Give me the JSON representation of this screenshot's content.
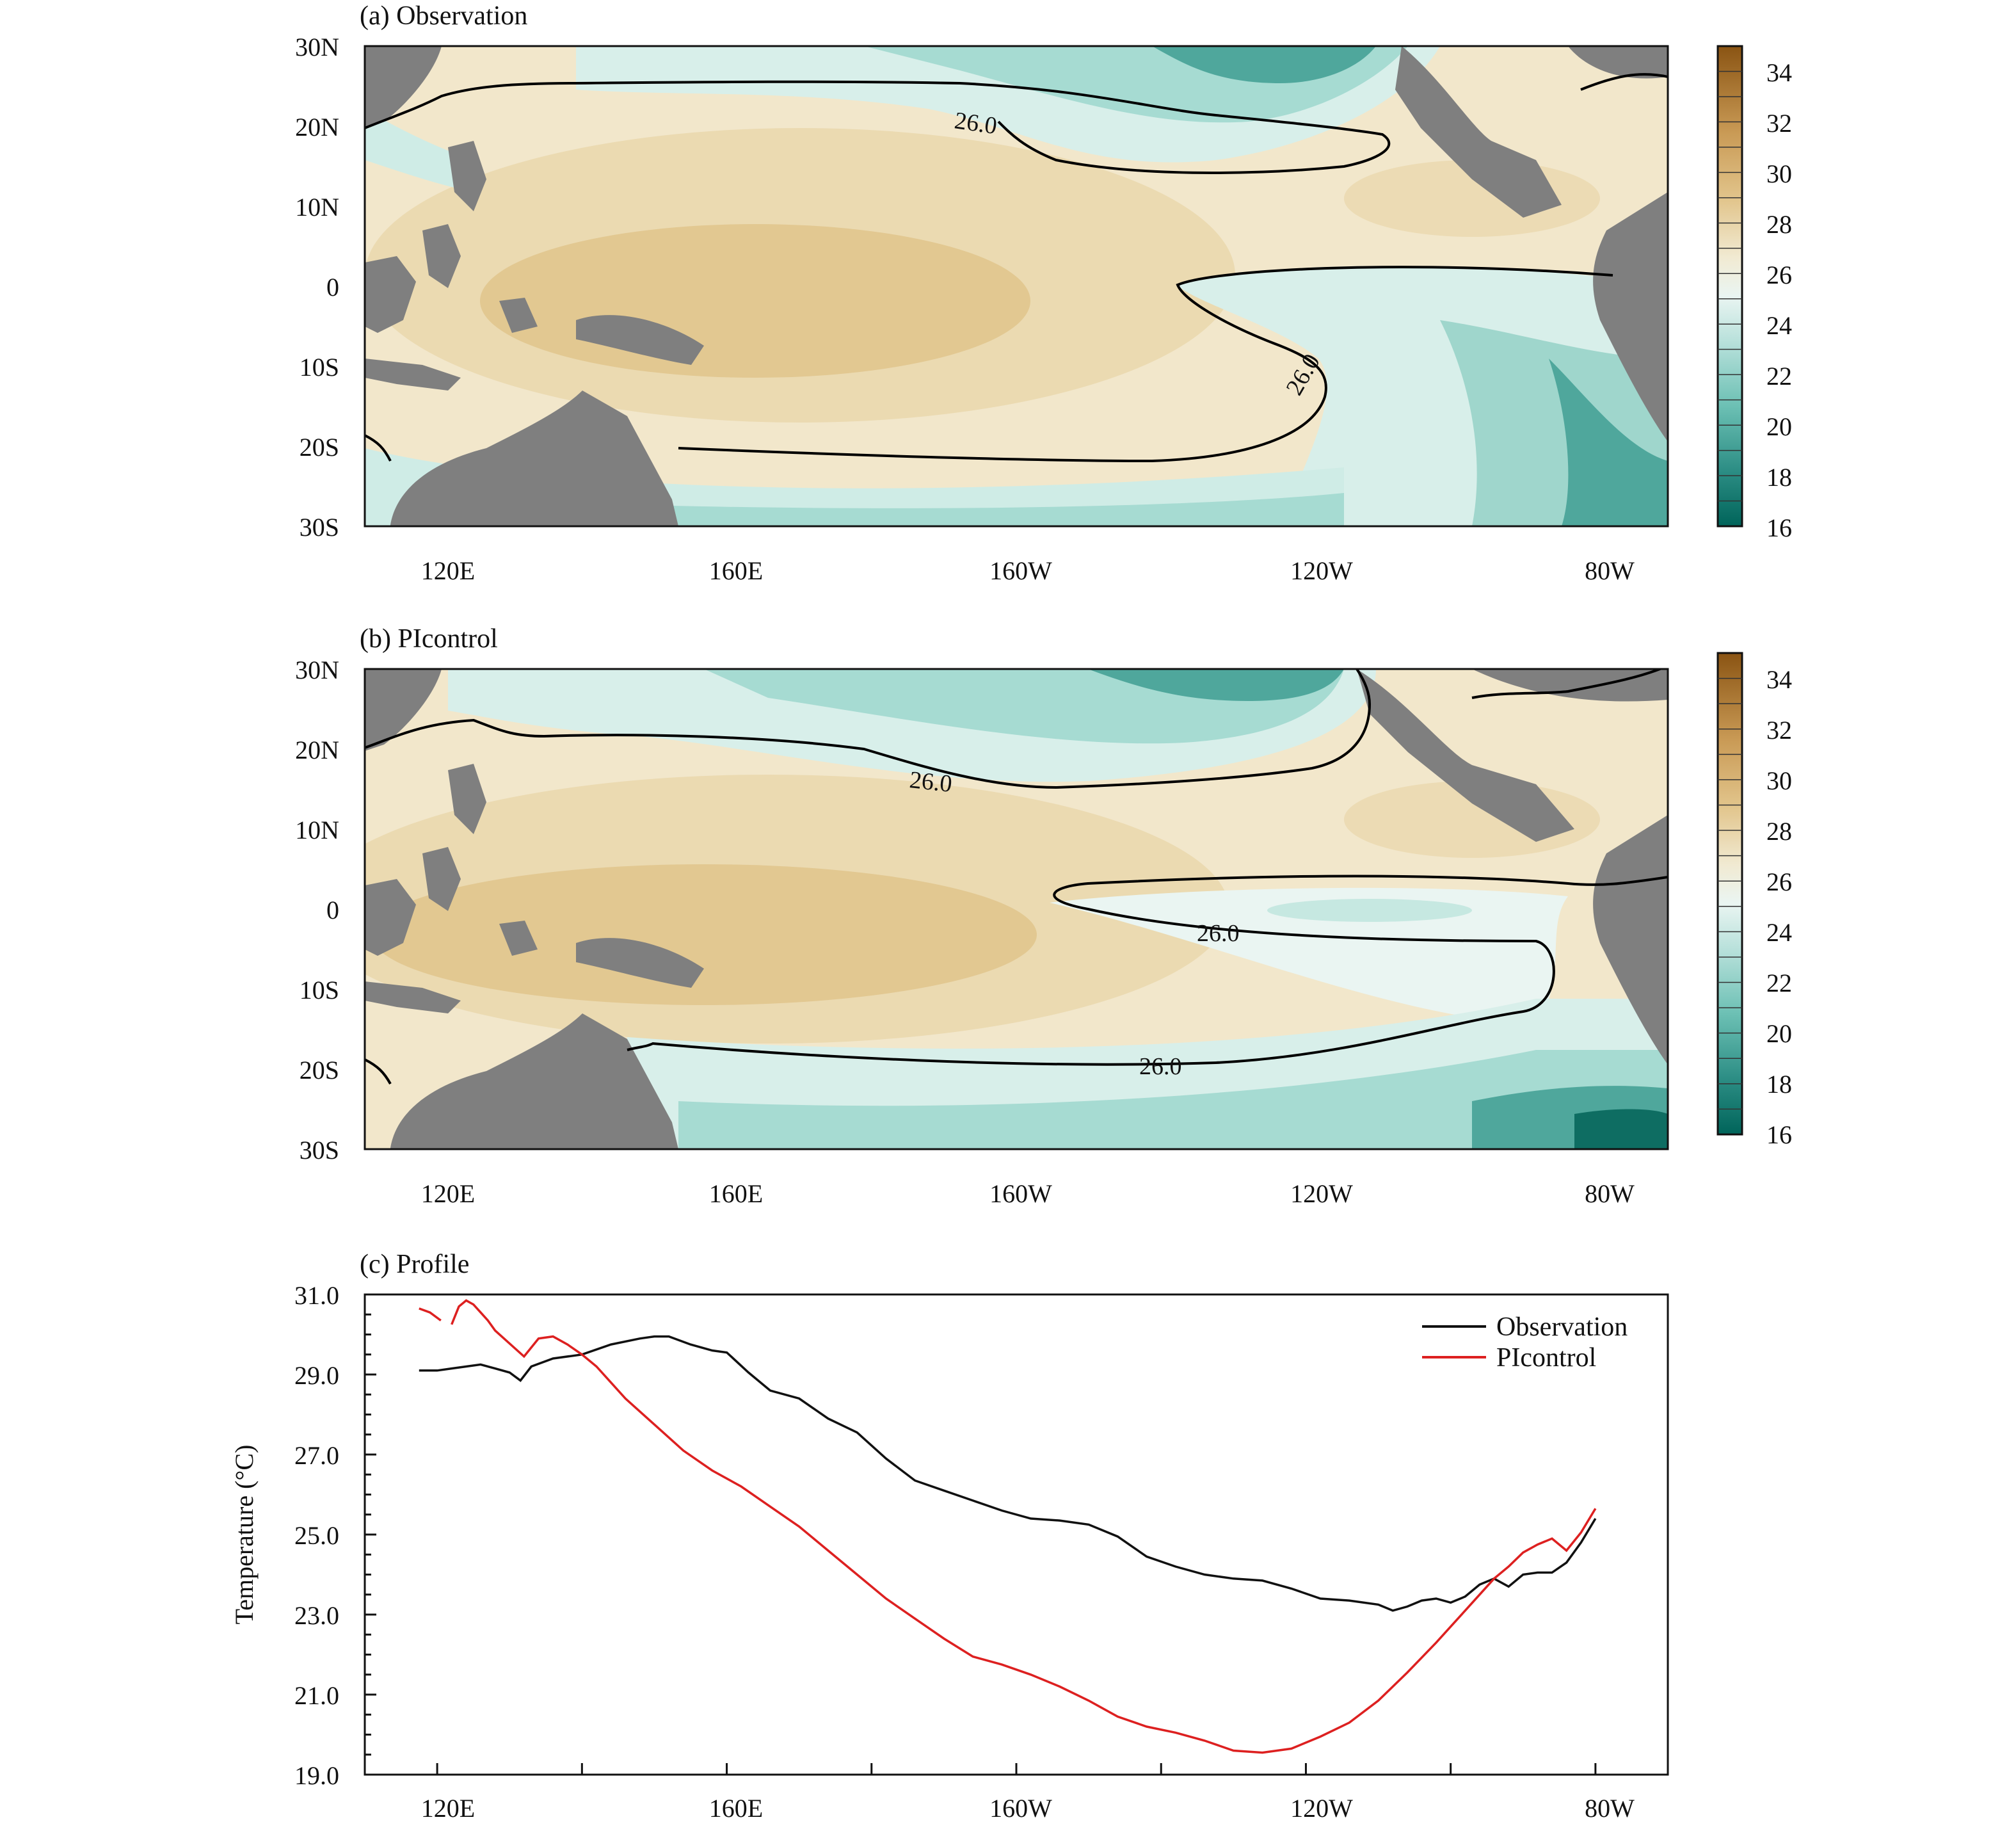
{
  "chart_data": [
    {
      "type": "heatmap",
      "title": "(a) Observation",
      "lat_tick_labels": [
        "30N",
        "20N",
        "10N",
        "0",
        "10S",
        "20S",
        "30S"
      ],
      "lon_tick_labels": [
        "120E",
        "160E",
        "160W",
        "120W",
        "80W"
      ],
      "lat_range": [
        -30,
        30
      ],
      "lon_range": [
        110,
        290
      ],
      "contour_value": 26.0,
      "contour_labels": [
        "26.0",
        "26.0"
      ],
      "colorbar_ticks": [
        "34",
        "32",
        "30",
        "28",
        "26",
        "24",
        "22",
        "20",
        "18",
        "16"
      ],
      "colorbar_range": [
        16,
        35
      ]
    },
    {
      "type": "heatmap",
      "title": "(b) PIcontrol",
      "lat_tick_labels": [
        "30N",
        "20N",
        "10N",
        "0",
        "10S",
        "20S",
        "30S"
      ],
      "lon_tick_labels": [
        "120E",
        "160E",
        "160W",
        "120W",
        "80W"
      ],
      "lat_range": [
        -30,
        30
      ],
      "lon_range": [
        110,
        290
      ],
      "contour_value": 26.0,
      "contour_labels": [
        "26.0",
        "26.0",
        "26.0"
      ],
      "colorbar_ticks": [
        "34",
        "32",
        "30",
        "28",
        "26",
        "24",
        "22",
        "20",
        "18",
        "16"
      ],
      "colorbar_range": [
        16,
        35
      ]
    },
    {
      "type": "line",
      "title": "(c) Profile",
      "ylabel": "Temperature (°C)",
      "xlabel": "",
      "xlim": [
        110,
        290
      ],
      "ylim": [
        19,
        31
      ],
      "y_tick_labels": [
        "31.0",
        "29.0",
        "27.0",
        "25.0",
        "23.0",
        "21.0",
        "19.0"
      ],
      "x_tick_labels": [
        "120E",
        "160E",
        "160W",
        "120W",
        "80W"
      ],
      "legend_position": "top-right",
      "series": [
        {
          "name": "Observation",
          "color": "#111111",
          "x": [
            117.5,
            120,
            122,
            124,
            126,
            128,
            130,
            131.5,
            133,
            136,
            140,
            144,
            148,
            150,
            152,
            155,
            158,
            160,
            163,
            166,
            170,
            174,
            178,
            182,
            186,
            190,
            194,
            198,
            202,
            206,
            210,
            214,
            218,
            222,
            226,
            230,
            234,
            238,
            242,
            246,
            250,
            252,
            254,
            256,
            258,
            260,
            262,
            264,
            266,
            268,
            270,
            272,
            274,
            276,
            278,
            280
          ],
          "y": [
            29.1,
            29.1,
            29.15,
            29.2,
            29.25,
            29.15,
            29.05,
            28.85,
            29.2,
            29.4,
            29.5,
            29.75,
            29.9,
            29.95,
            29.95,
            29.75,
            29.6,
            29.55,
            29.05,
            28.6,
            28.4,
            27.9,
            27.55,
            26.9,
            26.35,
            26.1,
            25.85,
            25.6,
            25.4,
            25.35,
            25.25,
            24.95,
            24.45,
            24.2,
            24.0,
            23.9,
            23.85,
            23.65,
            23.4,
            23.35,
            23.25,
            23.1,
            23.2,
            23.35,
            23.4,
            23.3,
            23.45,
            23.75,
            23.9,
            23.7,
            24.0,
            24.05,
            24.05,
            24.3,
            24.8,
            25.4
          ]
        },
        {
          "name": "PIcontrol",
          "color": "#dd2020",
          "x": [
            117.5,
            119,
            120.5,
            121,
            122,
            123,
            124,
            125,
            126,
            127,
            128,
            132,
            134,
            136,
            138,
            140,
            142,
            146,
            150,
            154,
            158,
            162,
            166,
            170,
            174,
            178,
            182,
            186,
            190,
            194,
            198,
            202,
            206,
            210,
            214,
            218,
            222,
            226,
            230,
            234,
            238,
            242,
            246,
            250,
            254,
            258,
            262,
            266,
            268,
            270,
            272,
            274,
            276,
            278,
            280
          ],
          "y": [
            30.65,
            30.55,
            30.35,
            null,
            30.25,
            30.7,
            30.85,
            30.75,
            30.55,
            30.35,
            30.1,
            29.45,
            29.9,
            29.95,
            29.75,
            29.5,
            29.2,
            28.4,
            27.75,
            27.1,
            26.6,
            26.2,
            25.7,
            25.2,
            24.6,
            24.0,
            23.4,
            22.9,
            22.4,
            21.95,
            21.75,
            21.5,
            21.2,
            20.85,
            20.45,
            20.2,
            20.05,
            19.85,
            19.6,
            19.55,
            19.65,
            19.95,
            20.3,
            20.85,
            21.55,
            22.3,
            23.1,
            23.9,
            24.2,
            24.55,
            24.75,
            24.9,
            24.6,
            25.05,
            25.65
          ]
        }
      ]
    }
  ]
}
